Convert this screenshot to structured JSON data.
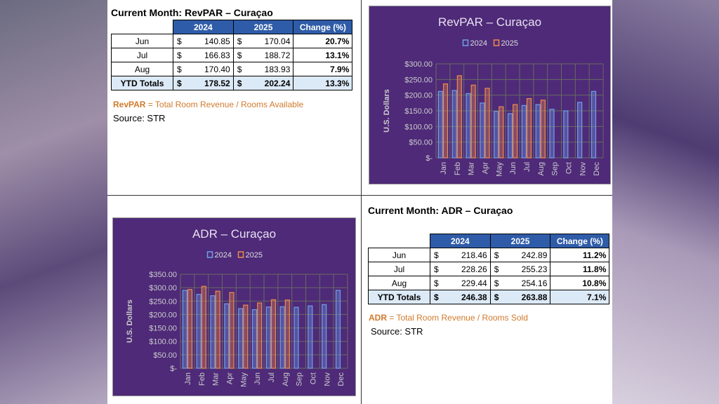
{
  "revpar_table": {
    "title": "Current Month: RevPAR – Curaçao",
    "headers": [
      "2024",
      "2025",
      "Change (%)"
    ],
    "rows": [
      {
        "month": "Jun",
        "cur1": "$",
        "v2024": "140.85",
        "cur2": "$",
        "v2025": "170.04",
        "change": "20.7%"
      },
      {
        "month": "Jul",
        "cur1": "$",
        "v2024": "166.83",
        "cur2": "$",
        "v2025": "188.72",
        "change": "13.1%"
      },
      {
        "month": "Aug",
        "cur1": "$",
        "v2024": "170.40",
        "cur2": "$",
        "v2025": "183.93",
        "change": "7.9%"
      },
      {
        "month": "YTD Totals",
        "cur1": "$",
        "v2024": "178.52",
        "cur2": "$",
        "v2025": "202.24",
        "change": "13.3%"
      }
    ],
    "note_term": "RevPAR",
    "note_def": " = Total Room Revenue / Rooms Available",
    "source": "Source: STR"
  },
  "adr_table": {
    "title": "Current Month: ADR – Curaçao",
    "headers": [
      "2024",
      "2025",
      "Change (%)"
    ],
    "rows": [
      {
        "month": "Jun",
        "cur1": "$",
        "v2024": "218.46",
        "cur2": "$",
        "v2025": "242.89",
        "change": "11.2%"
      },
      {
        "month": "Jul",
        "cur1": "$",
        "v2024": "228.26",
        "cur2": "$",
        "v2025": "255.23",
        "change": "11.8%"
      },
      {
        "month": "Aug",
        "cur1": "$",
        "v2024": "229.44",
        "cur2": "$",
        "v2025": "254.16",
        "change": "10.8%"
      },
      {
        "month": "YTD Totals",
        "cur1": "$",
        "v2024": "246.38",
        "cur2": "$",
        "v2025": "263.88",
        "change": "7.1%"
      }
    ],
    "note_term": "ADR",
    "note_def": " = Total Room Revenue / Rooms Sold",
    "source": "Source: STR"
  },
  "colors": {
    "chart_bg": "#4e2a78",
    "series_2024": "#6f9fe8",
    "series_2025": "#f08a4b",
    "header_blue": "#2f5ca8",
    "note_orange": "#d07a2c"
  },
  "chart_data": [
    {
      "id": "revpar",
      "type": "bar",
      "title": "RevPAR – Curaçao",
      "xlabel": "",
      "ylabel": "U.S. Dollars",
      "categories": [
        "Jan",
        "Feb",
        "Mar",
        "Apr",
        "May",
        "Jun",
        "Jul",
        "Aug",
        "Sep",
        "Oct",
        "Nov",
        "Dec"
      ],
      "series": [
        {
          "name": "2024",
          "values": [
            212,
            215,
            205,
            175,
            148,
            141,
            167,
            170,
            155,
            150,
            177,
            212
          ]
        },
        {
          "name": "2025",
          "values": [
            236,
            262,
            232,
            222,
            163,
            170,
            189,
            184,
            null,
            null,
            null,
            null
          ]
        }
      ],
      "ylim": [
        0,
        300
      ],
      "yticks": [
        0,
        50,
        100,
        150,
        200,
        250,
        300
      ],
      "yticklabels": [
        "$-",
        "$50.00",
        "$100.00",
        "$150.00",
        "$200.00",
        "$250.00",
        "$300.00"
      ],
      "legend": "top-center",
      "grid": true
    },
    {
      "id": "adr",
      "type": "bar",
      "title": "ADR – Curaçao",
      "xlabel": "",
      "ylabel": "U.S. Dollars",
      "categories": [
        "Jan",
        "Feb",
        "Mar",
        "Apr",
        "May",
        "Jun",
        "Jul",
        "Aug",
        "Sep",
        "Oct",
        "Nov",
        "Dec"
      ],
      "series": [
        {
          "name": "2024",
          "values": [
            290,
            275,
            270,
            240,
            222,
            218,
            228,
            229,
            227,
            232,
            237,
            290
          ]
        },
        {
          "name": "2025",
          "values": [
            293,
            305,
            287,
            282,
            235,
            243,
            255,
            254,
            null,
            null,
            null,
            null
          ]
        }
      ],
      "ylim": [
        0,
        350
      ],
      "yticks": [
        0,
        50,
        100,
        150,
        200,
        250,
        300,
        350
      ],
      "yticklabels": [
        "$-",
        "$50.00",
        "$100.00",
        "$150.00",
        "$200.00",
        "$250.00",
        "$300.00",
        "$350.00"
      ],
      "legend": "top-center",
      "grid": true
    }
  ]
}
